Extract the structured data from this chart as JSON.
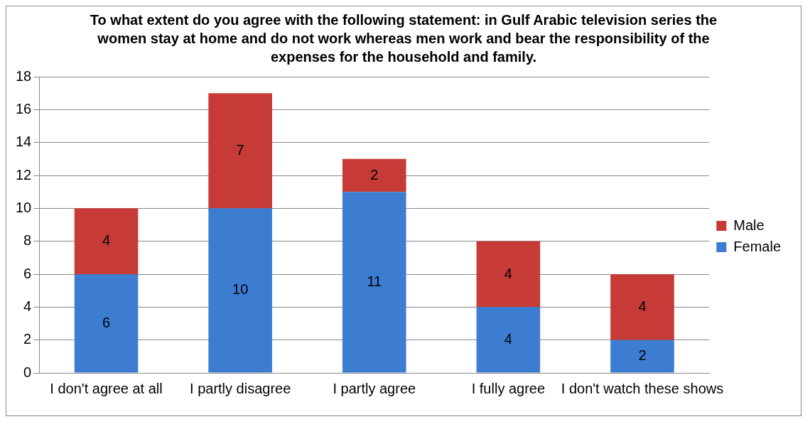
{
  "chart_data": {
    "type": "bar",
    "title": "To what extent do you agree with the following statement: in Gulf Arabic television series the women stay at home and do not work whereas men work and bear the responsibility of the expenses for the household and family.",
    "categories": [
      "I don't agree at all",
      "I partly disagree",
      "I partly agree",
      "I fully agree",
      "I don't watch these shows"
    ],
    "series": [
      {
        "name": "Female",
        "color": "#3c7dd2",
        "values": [
          6,
          10,
          11,
          4,
          2
        ]
      },
      {
        "name": "Male",
        "color": "#c63a37",
        "values": [
          4,
          7,
          2,
          4,
          4
        ]
      }
    ],
    "stacked": true,
    "ylim": [
      0,
      18
    ],
    "yticks": [
      0,
      2,
      4,
      6,
      8,
      10,
      12,
      14,
      16,
      18
    ],
    "grid": "y",
    "legend": "right",
    "data_labels": true
  }
}
